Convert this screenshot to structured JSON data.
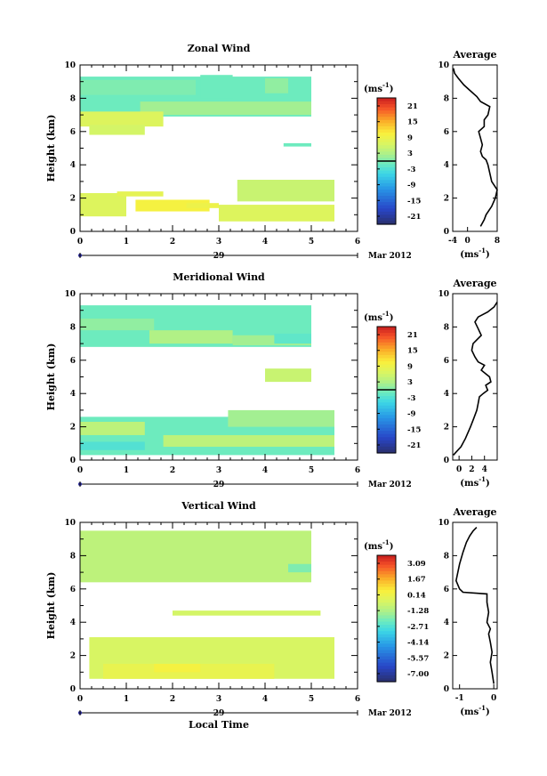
{
  "chart_data": [
    {
      "type": "heatmap",
      "title": "Zonal Wind",
      "ylabel": "Height (km)",
      "yticks": [
        "0",
        "2",
        "4",
        "6",
        "8",
        "10"
      ],
      "xticks": [
        "0",
        "1",
        "2",
        "3",
        "4",
        "5",
        "6"
      ],
      "xlim": [
        0,
        6
      ],
      "ylim": [
        0,
        10
      ],
      "date_day": "29",
      "date_month": "Mar 2012",
      "xlabel": "",
      "colorbar": {
        "unit_main": "(ms",
        "unit_exp": "-1",
        "unit_close": ")",
        "labels": [
          "21",
          "15",
          "9",
          "3",
          "-3",
          "-9",
          "-15",
          "-21"
        ],
        "range": [
          -24,
          24
        ]
      },
      "regions": [
        {
          "x": [
            0,
            5.0
          ],
          "y": [
            6.9,
            9.3
          ],
          "value": -1
        },
        {
          "x": [
            0,
            2.5
          ],
          "y": [
            8.2,
            9.1
          ],
          "value": 0
        },
        {
          "x": [
            2.6,
            3.3
          ],
          "y": [
            8.0,
            9.4
          ],
          "value": -1
        },
        {
          "x": [
            4.0,
            4.5
          ],
          "y": [
            8.3,
            9.2
          ],
          "value": 1
        },
        {
          "x": [
            1.3,
            5.0
          ],
          "y": [
            7.0,
            7.8
          ],
          "value": 2
        },
        {
          "x": [
            0,
            1.8
          ],
          "y": [
            6.3,
            7.2
          ],
          "value": 7
        },
        {
          "x": [
            0.2,
            1.4
          ],
          "y": [
            5.8,
            6.4
          ],
          "value": 6
        },
        {
          "x": [
            4.4,
            5.0
          ],
          "y": [
            5.1,
            5.3
          ],
          "value": -1
        },
        {
          "x": [
            0,
            1.0
          ],
          "y": [
            0.9,
            2.3
          ],
          "value": 7
        },
        {
          "x": [
            1.2,
            2.8
          ],
          "y": [
            1.2,
            1.9
          ],
          "value": 10
        },
        {
          "x": [
            3.0,
            5.5
          ],
          "y": [
            0.6,
            1.6
          ],
          "value": 7
        },
        {
          "x": [
            3.4,
            5.5
          ],
          "y": [
            1.8,
            3.1
          ],
          "value": 5
        },
        {
          "x": [
            0.8,
            1.8
          ],
          "y": [
            2.1,
            2.4
          ],
          "value": 8
        },
        {
          "x": [
            2.3,
            3.0
          ],
          "y": [
            1.4,
            1.7
          ],
          "value": 9
        }
      ],
      "profile": {
        "title": "Average",
        "xlabel_main": "(ms",
        "xlabel_exp": "-1",
        "xlabel_close": ")",
        "xticks": [
          "-4",
          "0",
          "8"
        ],
        "xtick_values": [
          -4,
          0,
          8
        ],
        "xlim": [
          -4,
          8
        ],
        "yticks": [
          "0",
          "2",
          "4",
          "6",
          "8",
          "10"
        ],
        "x": [
          3.5,
          4.5,
          5.0,
          6.5,
          7.5,
          8.0,
          6.5,
          6.0,
          5.5,
          5.0,
          4.0,
          3.5,
          4.0,
          3.5,
          3.0,
          4.5,
          4.5,
          5.5,
          6.0,
          3.5,
          2.5,
          0.5,
          -1.0,
          -2.5,
          -3.5,
          -3.8
        ],
        "y": [
          0.3,
          0.7,
          1.0,
          1.5,
          2.0,
          2.5,
          3.0,
          3.5,
          4.0,
          4.3,
          4.5,
          4.8,
          5.2,
          5.6,
          6.0,
          6.3,
          6.7,
          7.0,
          7.5,
          7.8,
          8.1,
          8.5,
          8.8,
          9.2,
          9.5,
          9.8
        ]
      }
    },
    {
      "type": "heatmap",
      "title": "Meridional Wind",
      "ylabel": "Height (km)",
      "yticks": [
        "0",
        "2",
        "4",
        "6",
        "8",
        "10"
      ],
      "xticks": [
        "0",
        "1",
        "2",
        "3",
        "4",
        "5",
        "6"
      ],
      "xlim": [
        0,
        6
      ],
      "ylim": [
        0,
        10
      ],
      "date_day": "29",
      "date_month": "Mar 2012",
      "xlabel": "",
      "colorbar": {
        "unit_main": "(ms",
        "unit_exp": "-1",
        "unit_close": ")",
        "labels": [
          "21",
          "15",
          "9",
          "3",
          "-3",
          "-9",
          "-15",
          "-21"
        ],
        "range": [
          -24,
          24
        ]
      },
      "regions": [
        {
          "x": [
            0,
            5.0
          ],
          "y": [
            6.8,
            9.3
          ],
          "value": -1
        },
        {
          "x": [
            0,
            1.6
          ],
          "y": [
            7.8,
            8.5
          ],
          "value": 1
        },
        {
          "x": [
            1.5,
            3.3
          ],
          "y": [
            7.0,
            7.8
          ],
          "value": 3
        },
        {
          "x": [
            3.3,
            5.0
          ],
          "y": [
            6.9,
            7.5
          ],
          "value": 2
        },
        {
          "x": [
            4.2,
            5.0
          ],
          "y": [
            7.0,
            7.6
          ],
          "value": -2
        },
        {
          "x": [
            4.0,
            5.0
          ],
          "y": [
            4.7,
            5.5
          ],
          "value": 5
        },
        {
          "x": [
            0,
            5.5
          ],
          "y": [
            0.3,
            2.6
          ],
          "value": -1
        },
        {
          "x": [
            0,
            1.4
          ],
          "y": [
            1.5,
            2.3
          ],
          "value": 4
        },
        {
          "x": [
            1.8,
            5.5
          ],
          "y": [
            0.8,
            1.5
          ],
          "value": 4
        },
        {
          "x": [
            3.2,
            5.5
          ],
          "y": [
            2.0,
            3.0
          ],
          "value": 2
        },
        {
          "x": [
            0,
            1.4
          ],
          "y": [
            0.6,
            1.1
          ],
          "value": -3
        }
      ],
      "profile": {
        "title": "Average",
        "xlabel_main": "(ms",
        "xlabel_exp": "-1",
        "xlabel_close": ")",
        "xticks": [
          "0",
          "2",
          "4"
        ],
        "xtick_values": [
          0,
          2,
          4
        ],
        "xlim": [
          -1,
          6
        ],
        "yticks": [
          "0",
          "2",
          "4",
          "6",
          "8",
          "10"
        ],
        "x": [
          -0.9,
          0.3,
          1.0,
          1.8,
          2.3,
          2.8,
          3.0,
          3.2,
          3.8,
          4.5,
          4.2,
          5.0,
          4.8,
          3.5,
          4.0,
          3.0,
          2.5,
          2.0,
          2.2,
          3.5,
          3.0,
          2.5,
          3.0,
          4.5,
          5.5,
          6.0
        ],
        "y": [
          0.3,
          0.8,
          1.3,
          2.0,
          2.5,
          3.0,
          3.4,
          3.8,
          4.0,
          4.2,
          4.5,
          4.7,
          5.0,
          5.4,
          5.7,
          5.9,
          6.2,
          6.6,
          7.0,
          7.5,
          7.9,
          8.3,
          8.6,
          8.9,
          9.2,
          9.5
        ]
      }
    },
    {
      "type": "heatmap",
      "title": "Vertical Wind",
      "ylabel": "Height (km)",
      "yticks": [
        "0",
        "2",
        "4",
        "6",
        "8",
        "10"
      ],
      "xticks": [
        "0",
        "1",
        "2",
        "3",
        "4",
        "5",
        "6"
      ],
      "xlim": [
        0,
        6
      ],
      "ylim": [
        0,
        10
      ],
      "date_day": "29",
      "date_month": "Mar 2012",
      "xlabel": "Local Time",
      "colorbar": {
        "unit_main": "(ms",
        "unit_exp": "-1",
        "unit_close": ")",
        "labels": [
          "3.09",
          "1.67",
          "0.14",
          "-1.28",
          "-2.71",
          "-4.14",
          "-5.57",
          "-7.00"
        ],
        "range": [
          -8,
          4
        ]
      },
      "regions": [
        {
          "x": [
            0,
            5.0
          ],
          "y": [
            6.4,
            9.5
          ],
          "value": -1.0
        },
        {
          "x": [
            4.5,
            5.0
          ],
          "y": [
            7.0,
            7.5
          ],
          "value": -2.0
        },
        {
          "x": [
            0.2,
            5.5
          ],
          "y": [
            0.6,
            3.1
          ],
          "value": -0.4
        },
        {
          "x": [
            0.5,
            4.2
          ],
          "y": [
            0.6,
            1.5
          ],
          "value": 0.1
        },
        {
          "x": [
            1.6,
            2.6
          ],
          "y": [
            1.0,
            1.5
          ],
          "value": 0.5
        },
        {
          "x": [
            2.0,
            5.2
          ],
          "y": [
            4.4,
            4.7
          ],
          "value": -0.5
        }
      ],
      "profile": {
        "title": "Average",
        "xlabel_main": "(ms",
        "xlabel_exp": "-1",
        "xlabel_close": ")",
        "xticks": [
          "-1",
          "0"
        ],
        "xtick_values": [
          -1,
          0
        ],
        "xlim": [
          -1.2,
          0.1
        ],
        "yticks": [
          "0",
          "2",
          "4",
          "6",
          "8",
          "10"
        ],
        "x": [
          0.0,
          -0.05,
          -0.1,
          -0.05,
          -0.1,
          -0.15,
          -0.1,
          -0.2,
          -0.15,
          -0.2,
          -0.2,
          -0.9,
          -1.0,
          -1.1,
          -1.0,
          -0.9,
          -0.8,
          -0.7,
          -0.6,
          -0.5
        ],
        "y": [
          0.3,
          1.0,
          1.6,
          2.2,
          2.8,
          3.3,
          3.6,
          4.0,
          4.6,
          5.2,
          5.7,
          5.8,
          6.0,
          6.5,
          7.5,
          8.2,
          8.8,
          9.2,
          9.5,
          9.7
        ]
      }
    }
  ]
}
